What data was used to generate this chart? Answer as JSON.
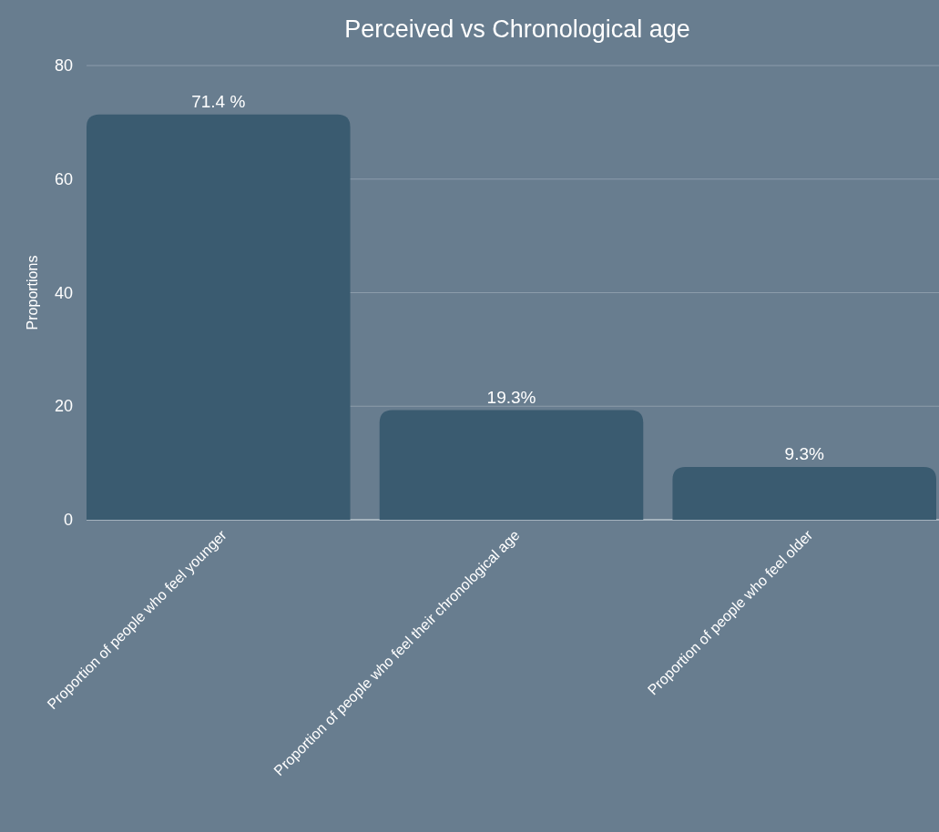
{
  "chart_data": {
    "type": "bar",
    "title": "Perceived vs Chronological age",
    "ylabel": "Proportions",
    "categories": [
      "Proportion of people who feel younger",
      "Proportion of people who feel their chronological age",
      "Proportion of people who feel older"
    ],
    "values": [
      71.4,
      19.3,
      9.3
    ],
    "value_labels": [
      "71.4 %",
      "19.3%",
      "9.3%"
    ],
    "color": "#3a5b70",
    "ylim": [
      0,
      80
    ],
    "yticks": [
      0,
      20,
      40,
      60,
      80
    ],
    "grid": "y"
  }
}
